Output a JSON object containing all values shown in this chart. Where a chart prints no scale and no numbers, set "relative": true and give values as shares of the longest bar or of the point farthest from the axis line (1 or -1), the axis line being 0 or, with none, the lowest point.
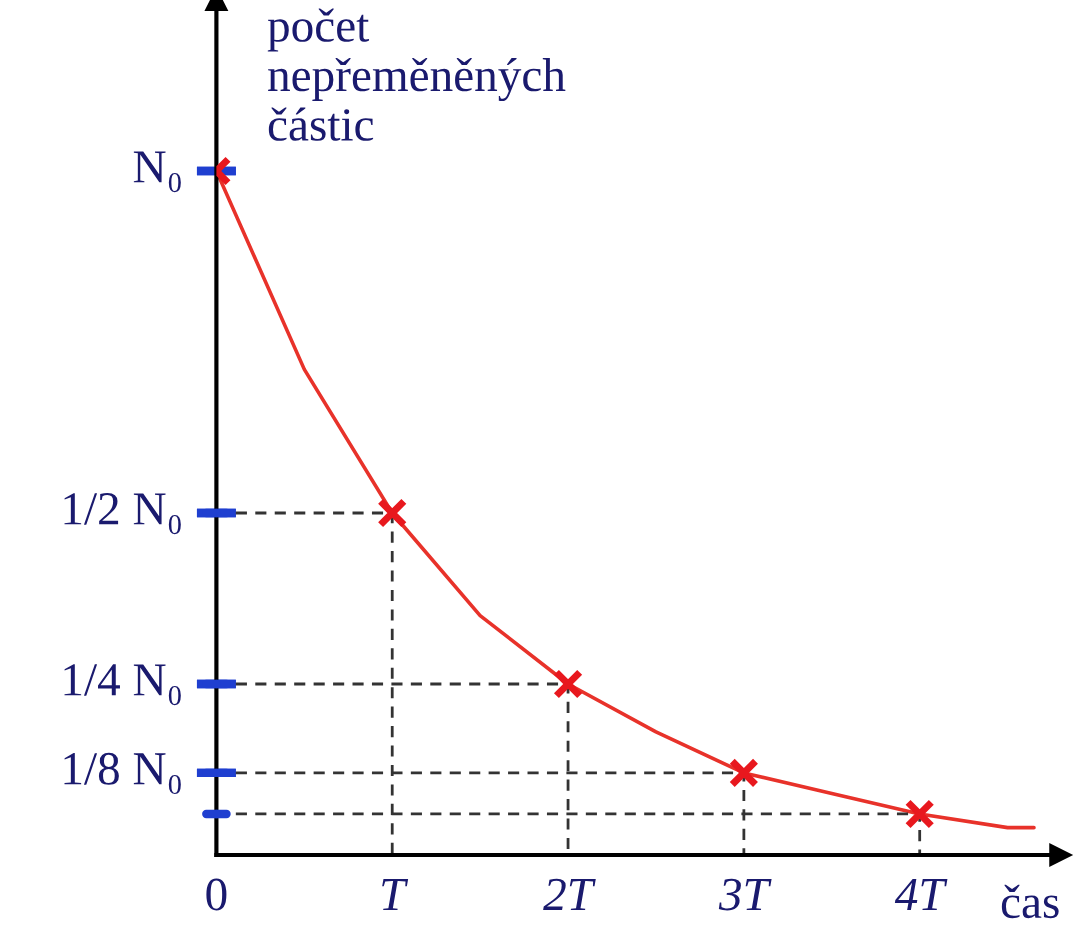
{
  "chart_data": {
    "type": "line",
    "relative": true,
    "xlabel": "čas",
    "ylabel": "počet\nnepřeměněných\nčástic",
    "xlim": [
      0,
      4.8
    ],
    "xticks": [
      {
        "value": 0,
        "label": "0"
      },
      {
        "value": 1,
        "label": "T"
      },
      {
        "value": 2,
        "label": "2T"
      },
      {
        "value": 3,
        "label": "3T"
      },
      {
        "value": 4,
        "label": "4T"
      }
    ],
    "annotations": [
      "N₀",
      "1/2 N₀",
      "1/4 N₀",
      "1/8 N₀"
    ],
    "grid": false,
    "series": [
      {
        "color": "#e8322a",
        "marker": "none",
        "line_style": "solid",
        "x": [
          0,
          0.5,
          1,
          1.5,
          2,
          2.5,
          3,
          3.5,
          4,
          4.5,
          4.65
        ],
        "values": [
          1,
          0.71,
          0.5,
          0.35,
          0.25,
          0.18,
          0.12,
          0.09,
          0.06,
          0.04,
          0.04
        ]
      },
      {
        "color": "#333333",
        "marker": "none",
        "line_style": "dashed",
        "x": [
          0,
          1,
          1
        ],
        "values": [
          0.5,
          0.5,
          0
        ]
      },
      {
        "color": "#333333",
        "marker": "none",
        "line_style": "dashed",
        "x": [
          0,
          2,
          2
        ],
        "values": [
          0.25,
          0.25,
          0
        ]
      },
      {
        "color": "#333333",
        "marker": "none",
        "line_style": "dashed",
        "x": [
          0,
          3,
          3
        ],
        "values": [
          0.12,
          0.12,
          0
        ]
      },
      {
        "color": "#333333",
        "marker": "none",
        "line_style": "dashed",
        "x": [
          0,
          4,
          4
        ],
        "values": [
          0.06,
          0.06,
          0
        ]
      },
      {
        "type": "scatter",
        "color": "#e8181e",
        "marker": "cross",
        "x": [
          0,
          1,
          2,
          3,
          4
        ],
        "values": [
          1,
          0.5,
          0.25,
          0.12,
          0.06
        ]
      }
    ]
  }
}
